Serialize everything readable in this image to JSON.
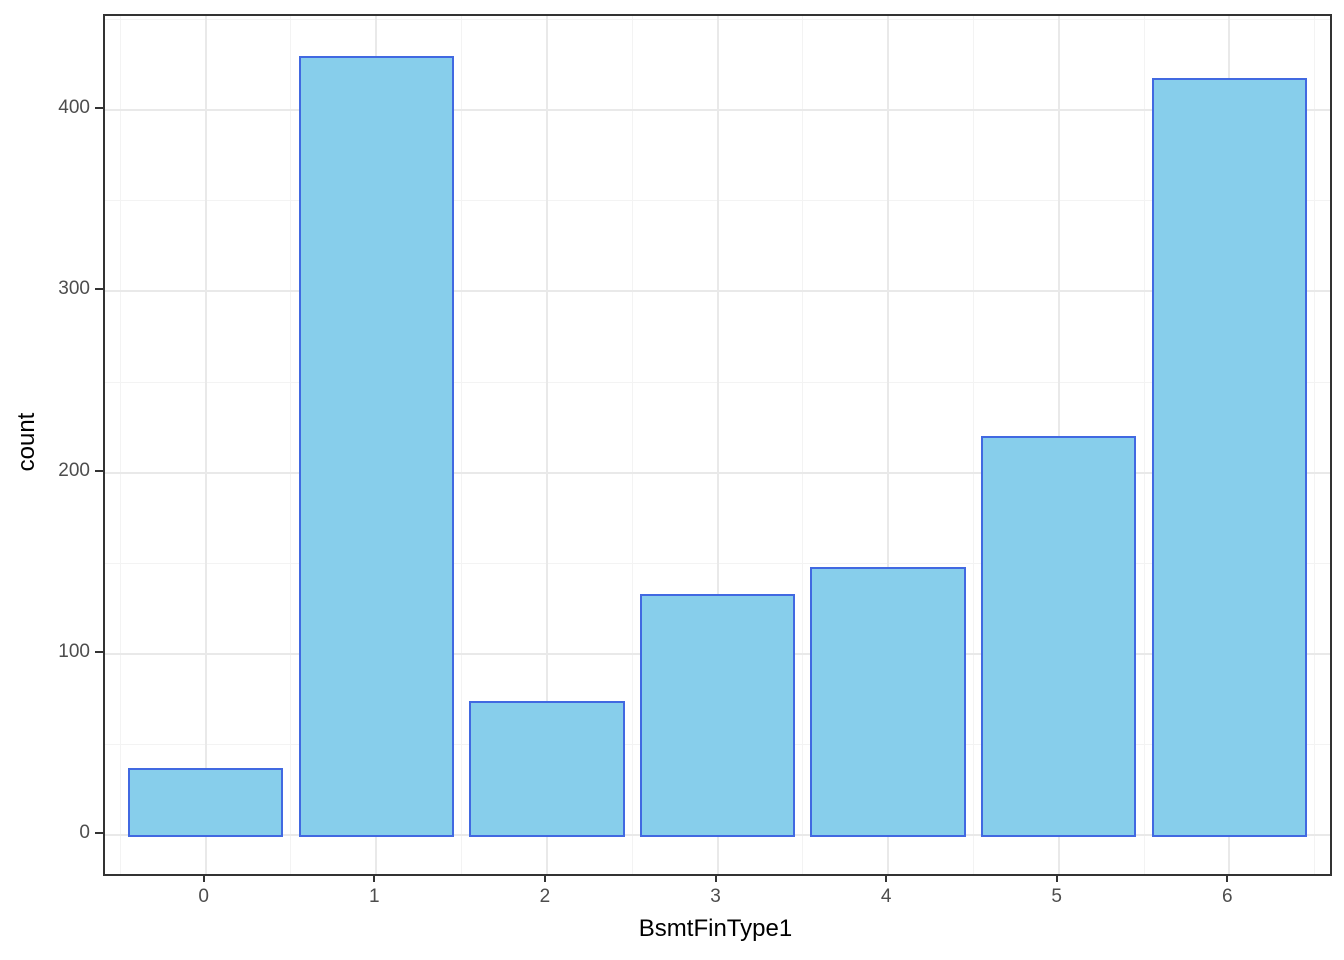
{
  "chart_data": {
    "type": "bar",
    "title": "",
    "xlabel": "BsmtFinType1",
    "ylabel": "count",
    "categories": [
      "0",
      "1",
      "2",
      "3",
      "4",
      "5",
      "6"
    ],
    "values": [
      37,
      430,
      74,
      133,
      148,
      220,
      418
    ],
    "y_ticks": [
      0,
      100,
      200,
      300,
      400
    ],
    "y_minor_ticks": [
      50,
      150,
      250,
      350,
      450
    ],
    "x_minor_ticks": [
      -0.5,
      0.5,
      1.5,
      2.5,
      3.5,
      4.5,
      5.5,
      6.5
    ],
    "xlim": [
      -0.59,
      6.59
    ],
    "ylim": [
      -21.5,
      452
    ],
    "bar_width": 0.91,
    "grid": "major and minor, light gray on white",
    "legend": "none",
    "colors": {
      "bar_fill": "#87CEEB",
      "bar_stroke": "#4169E1",
      "panel_border": "#333333",
      "grid_major": "#E9E9E9",
      "grid_minor": "#F3F3F3",
      "tick_label": "#4D4D4D",
      "axis_title": "#000000"
    }
  }
}
